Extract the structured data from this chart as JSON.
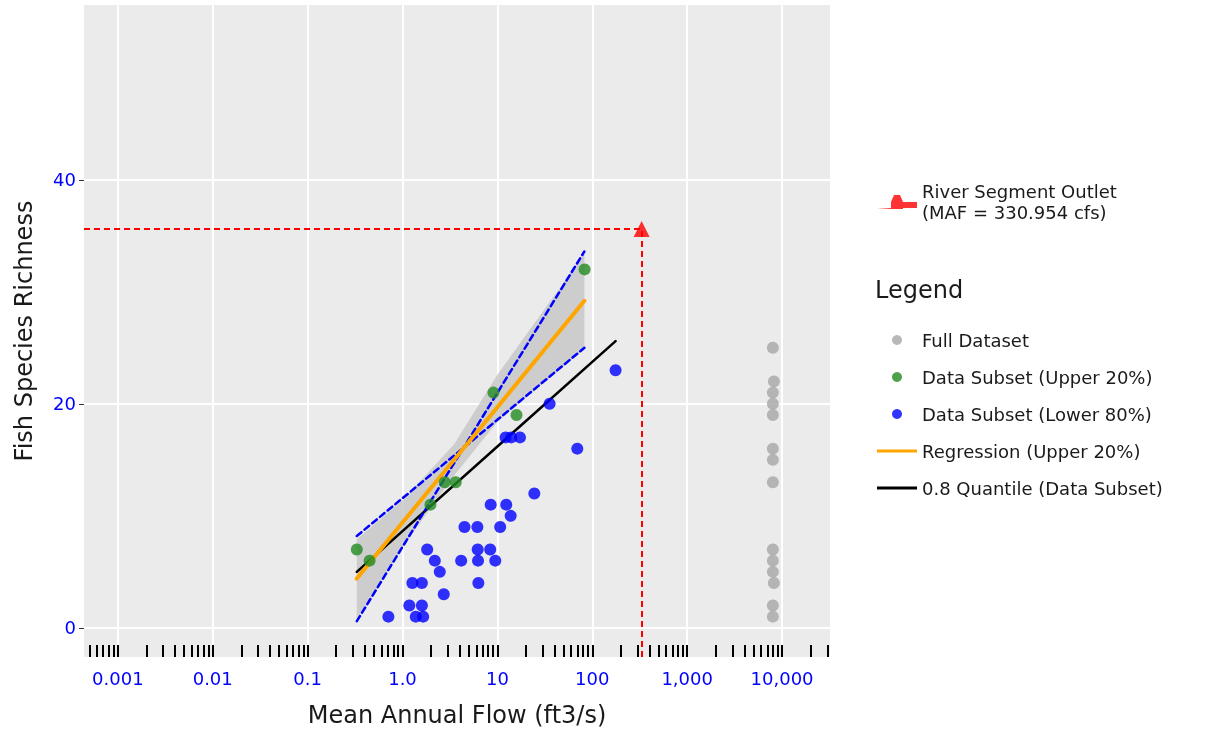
{
  "chart_data": {
    "type": "scatter",
    "xlabel": "Mean Annual Flow (ft3/s)",
    "ylabel": "Fish Species Richness",
    "legend_title": "Legend",
    "log": "x",
    "grid": true,
    "legend": "right",
    "xlim": [
      0.00044,
      32000
    ],
    "ylim": [
      -2.6,
      55.6
    ],
    "xticks": [
      {
        "value": 0.0005,
        "label": null
      },
      {
        "value": 0.0006,
        "label": null
      },
      {
        "value": 0.0007,
        "label": null
      },
      {
        "value": 0.0008,
        "label": null
      },
      {
        "value": 0.0009,
        "label": null
      },
      0.001,
      {
        "value": 0.002,
        "label": null
      },
      {
        "value": 0.003,
        "label": null
      },
      {
        "value": 0.004,
        "label": null
      },
      {
        "value": 0.005,
        "label": null
      },
      {
        "value": 0.006,
        "label": null
      },
      {
        "value": 0.007,
        "label": null
      },
      {
        "value": 0.008,
        "label": null
      },
      {
        "value": 0.009,
        "label": null
      },
      0.01,
      {
        "value": 0.02,
        "label": null
      },
      {
        "value": 0.03,
        "label": null
      },
      {
        "value": 0.04,
        "label": null
      },
      {
        "value": 0.05,
        "label": null
      },
      {
        "value": 0.06,
        "label": null
      },
      {
        "value": 0.07,
        "label": null
      },
      {
        "value": 0.08,
        "label": null
      },
      {
        "value": 0.09,
        "label": null
      },
      0.1,
      {
        "value": 0.2,
        "label": null
      },
      {
        "value": 0.3,
        "label": null
      },
      {
        "value": 0.4,
        "label": null
      },
      {
        "value": 0.5,
        "label": null
      },
      {
        "value": 0.6,
        "label": null
      },
      {
        "value": 0.7,
        "label": null
      },
      {
        "value": 0.8,
        "label": null
      },
      {
        "value": 0.9,
        "label": null
      },
      {
        "value": 1,
        "label": "1.0"
      },
      {
        "value": 2,
        "label": null
      },
      {
        "value": 3,
        "label": null
      },
      {
        "value": 4,
        "label": null
      },
      {
        "value": 5,
        "label": null
      },
      {
        "value": 6,
        "label": null
      },
      {
        "value": 7,
        "label": null
      },
      {
        "value": 8,
        "label": null
      },
      {
        "value": 9,
        "label": null
      },
      10,
      {
        "value": 20,
        "label": null
      },
      {
        "value": 30,
        "label": null
      },
      {
        "value": 40,
        "label": null
      },
      {
        "value": 50,
        "label": null
      },
      {
        "value": 60,
        "label": null
      },
      {
        "value": 70,
        "label": null
      },
      {
        "value": 80,
        "label": null
      },
      {
        "value": 90,
        "label": null
      },
      100,
      {
        "value": 200,
        "label": null
      },
      {
        "value": 300,
        "label": null
      },
      {
        "value": 400,
        "label": null
      },
      {
        "value": 500,
        "label": null
      },
      {
        "value": 600,
        "label": null
      },
      {
        "value": 700,
        "label": null
      },
      {
        "value": 800,
        "label": null
      },
      {
        "value": 900,
        "label": null
      },
      {
        "value": 1000,
        "label": "1,000"
      },
      {
        "value": 2000,
        "label": null
      },
      {
        "value": 3000,
        "label": null
      },
      {
        "value": 4000,
        "label": null
      },
      {
        "value": 5000,
        "label": null
      },
      {
        "value": 6000,
        "label": null
      },
      {
        "value": 7000,
        "label": null
      },
      {
        "value": 8000,
        "label": null
      },
      {
        "value": 9000,
        "label": null
      },
      {
        "value": 10000,
        "label": "10,000"
      },
      {
        "value": 20000,
        "label": null
      },
      {
        "value": 30000,
        "label": null
      }
    ],
    "yticks": [
      0,
      20,
      40
    ],
    "series": [
      {
        "name": "River Segment Outlet\n(MAF = 330.954 cfs)",
        "marker": "triangle",
        "color": "#ff0000",
        "x": [
          330.954
        ],
        "values": [
          35.6
        ]
      },
      {
        "name": "Full Dataset",
        "marker": "circle",
        "color": "#a6a6a6",
        "x": [
          8000,
          8200,
          8000,
          8000,
          8000,
          8000,
          8000,
          8000,
          8000,
          8000,
          8000,
          8200,
          8000,
          8000
        ],
        "values": [
          25,
          22,
          21,
          20,
          19,
          16,
          15,
          13,
          7,
          6,
          5,
          4,
          2,
          1
        ]
      },
      {
        "name": "Data Subset (Upper 20%)",
        "marker": "circle",
        "color": "#228b22",
        "x": [
          0.33,
          0.45,
          1.97,
          2.79,
          3.64,
          9.08,
          15.9,
          83
        ],
        "values": [
          7,
          6,
          11,
          13,
          13,
          21,
          19,
          32
        ]
      },
      {
        "name": "Data Subset (Lower 80%)",
        "marker": "circle",
        "color": "#0000ff",
        "x": [
          0.71,
          1.18,
          1.27,
          1.6,
          1.6,
          1.38,
          1.65,
          1.82,
          2.19,
          2.47,
          2.72,
          4.15,
          4.5,
          6.15,
          6.2,
          6.25,
          6.3,
          8.4,
          8.5,
          9.5,
          10.7,
          12.4,
          13.8,
          12.2,
          14.0,
          17.3,
          24.5,
          35.5,
          69.5,
          176
        ],
        "values": [
          1,
          2,
          4,
          4,
          2,
          1,
          1,
          7,
          6,
          5,
          3,
          6,
          9,
          9,
          7,
          6,
          4,
          7,
          11,
          6,
          9,
          11,
          10,
          17,
          17,
          17,
          12,
          20,
          16,
          23
        ]
      },
      {
        "name": "Regression (Upper 20%)",
        "type": "line",
        "marker": "none",
        "line_style": "solid",
        "color": "#ffa500",
        "x": [
          0.33,
          1,
          3.5,
          10,
          82.6
        ],
        "values": [
          4.4,
          9.4,
          15.0,
          19.7,
          29.2
        ],
        "lower": [
          0.8,
          7.2,
          13.6,
          18.4,
          24.9
        ],
        "upper": [
          7.9,
          11.4,
          16.4,
          22.6,
          33.4
        ]
      },
      {
        "name": "0.8 Quantile (Data Subset)",
        "type": "line",
        "marker": "none",
        "line_style": "solid",
        "color": "#000000",
        "x": [
          0.33,
          176
        ],
        "values": [
          5.0,
          25.6
        ]
      },
      {
        "type": "line",
        "marker": "none",
        "line_style": "dashed",
        "color": "#0000ff",
        "x": [
          0.33,
          82.6
        ],
        "values": [
          8.2,
          25.0
        ]
      },
      {
        "type": "line",
        "marker": "none",
        "line_style": "dashed",
        "color": "#0000ff",
        "x": [
          0.33,
          82.6
        ],
        "values": [
          0.6,
          33.6
        ]
      }
    ],
    "ref_lines": [
      {
        "axis": "x",
        "value": 330.954,
        "color": "#ff0000",
        "line_style": "dashed"
      },
      {
        "axis": "y",
        "value": 35.6,
        "color": "#ff0000",
        "line_style": "dashed"
      }
    ]
  }
}
